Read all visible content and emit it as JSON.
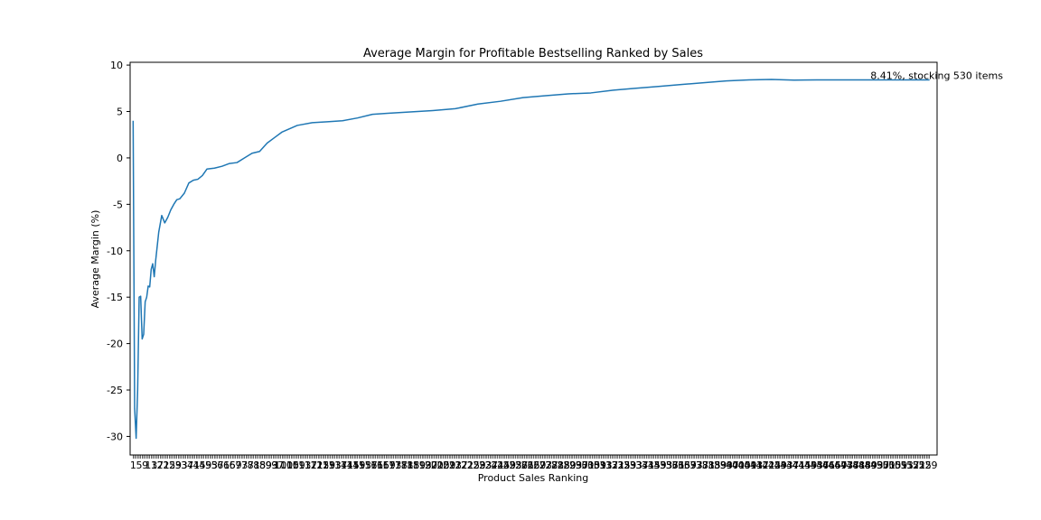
{
  "chart_data": {
    "type": "line",
    "title": "Average Margin for Profitable Bestselling Ranked by Sales",
    "xlabel": "Product Sales Ranking",
    "ylabel": "Average Margin (%)",
    "ylim": [
      -32,
      10.3
    ],
    "yticks": [
      -30,
      -25,
      -20,
      -15,
      -10,
      -5,
      0,
      5,
      10
    ],
    "xlim": [
      -1,
      535
    ],
    "xtick_first_label": "1",
    "xtick_last_label": "530",
    "grid": false,
    "legend": "none",
    "colors": {
      "line": "#1f77b4"
    },
    "series": [
      {
        "x": [
          1,
          2,
          3,
          4,
          5,
          6,
          7,
          8,
          9,
          10,
          11,
          12,
          13,
          14,
          15,
          16,
          17,
          18,
          20,
          22,
          24,
          26,
          28,
          30,
          32,
          35,
          38,
          41,
          44,
          47,
          50,
          55,
          60,
          65,
          70,
          75,
          80,
          85,
          90,
          95,
          100,
          110,
          120,
          130,
          140,
          150,
          160,
          170,
          180,
          190,
          200,
          215,
          230,
          245,
          260,
          275,
          290,
          305,
          320,
          335,
          350,
          365,
          380,
          395,
          410,
          425,
          440,
          455,
          470,
          485,
          500,
          515,
          520,
          525,
          530
        ],
        "values": [
          4.0,
          -27.0,
          -30.2,
          -25.0,
          -15.0,
          -14.9,
          -19.5,
          -19.0,
          -15.5,
          -15.0,
          -13.8,
          -13.9,
          -12.0,
          -11.4,
          -12.8,
          -11.0,
          -9.5,
          -8.0,
          -6.2,
          -7.0,
          -6.4,
          -5.6,
          -5.0,
          -4.5,
          -4.4,
          -3.8,
          -2.7,
          -2.4,
          -2.3,
          -1.9,
          -1.2,
          -1.1,
          -0.9,
          -0.6,
          -0.5,
          0.0,
          0.5,
          0.7,
          1.6,
          2.2,
          2.8,
          3.5,
          3.8,
          3.9,
          4.0,
          4.3,
          4.7,
          4.8,
          4.9,
          5.0,
          5.1,
          5.3,
          5.8,
          6.1,
          6.5,
          6.7,
          6.9,
          7.0,
          7.3,
          7.5,
          7.7,
          7.9,
          8.1,
          8.3,
          8.4,
          8.45,
          8.38,
          8.41,
          8.41,
          8.41,
          8.41,
          8.41,
          8.41,
          8.41,
          8.41
        ]
      }
    ],
    "annotation": {
      "text": "8.41%, stocking 530 items",
      "x": 530,
      "y": 8.41
    }
  }
}
